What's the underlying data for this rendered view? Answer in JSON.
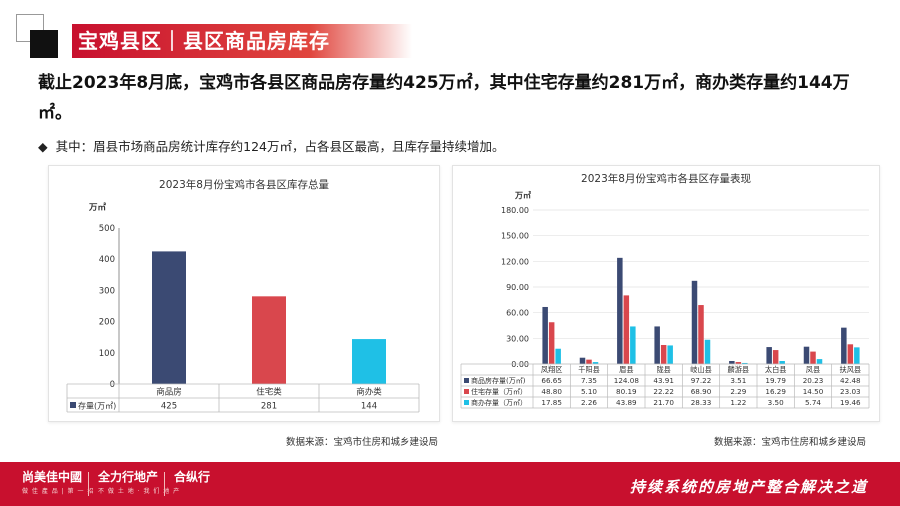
{
  "header": {
    "title": "宝鸡县区｜县区商品房库存"
  },
  "headline": "截止2023年8月底，宝鸡市各县区商品房存量约425万㎡，其中住宅存量约281万㎡，商办类存量约144万㎡。",
  "bullet": {
    "symbol": "◆",
    "text": "其中：眉县市场商品房统计库存约124万㎡，占各县区最高，且库存量持续增加。"
  },
  "colors": {
    "brand_red": "#c8102e",
    "navy": "#3b4a73",
    "red": "#d9474d",
    "cyan": "#1fc0e6"
  },
  "chart_data": [
    {
      "type": "bar",
      "title": "2023年8月份宝鸡市各县区库存总量",
      "yunit": "万㎡",
      "categories": [
        "商品房",
        "住宅类",
        "商办类"
      ],
      "series": [
        {
          "name": "存量(万㎡)",
          "values": [
            425,
            281,
            144
          ]
        }
      ],
      "value_labels": [
        "425",
        "281",
        "144"
      ],
      "ylim": [
        0,
        500
      ],
      "yticks": [
        "0",
        "100",
        "200",
        "300",
        "400",
        "500"
      ],
      "bar_colors": [
        "#3b4a73",
        "#d9474d",
        "#1fc0e6"
      ],
      "grid": false,
      "legend": "data-table"
    },
    {
      "type": "bar",
      "title": "2023年8月份宝鸡市各县区存量表现",
      "yunit": "万㎡",
      "categories": [
        "凤翔区",
        "千阳县",
        "眉县",
        "陇县",
        "岐山县",
        "麟游县",
        "太白县",
        "凤县",
        "扶风县"
      ],
      "series": [
        {
          "name": "商品房存量(万㎡)",
          "values": [
            66.65,
            7.35,
            124.08,
            43.91,
            97.22,
            3.51,
            19.79,
            20.23,
            42.48
          ],
          "labels": [
            "66.65",
            "7.35",
            "124.08",
            "43.91",
            "97.22",
            "3.51",
            "19.79",
            "20.23",
            "42.48"
          ],
          "color": "#3b4a73"
        },
        {
          "name": "住宅存量（万㎡）",
          "values": [
            48.8,
            5.1,
            80.19,
            22.22,
            68.9,
            2.29,
            16.29,
            14.5,
            23.03
          ],
          "labels": [
            "48.80",
            "5.10",
            "80.19",
            "22.22",
            "68.90",
            "2.29",
            "16.29",
            "14.50",
            "23.03"
          ],
          "color": "#d9474d"
        },
        {
          "name": "商办存量（万㎡）",
          "values": [
            17.85,
            2.26,
            43.89,
            21.7,
            28.33,
            1.22,
            3.5,
            5.74,
            19.46
          ],
          "labels": [
            "17.85",
            "2.26",
            "43.89",
            "21.70",
            "28.33",
            "1.22",
            "3.50",
            "5.74",
            "19.46"
          ],
          "color": "#1fc0e6"
        }
      ],
      "ylim": [
        0,
        180
      ],
      "yticks": [
        "0.00",
        "30.00",
        "60.00",
        "90.00",
        "120.00",
        "150.00",
        "180.00"
      ],
      "grid": true,
      "legend": "data-table"
    }
  ],
  "sources": {
    "left": "数据来源：宝鸡市住房和城乡建设局",
    "right": "数据来源：宝鸡市住房和城乡建设局"
  },
  "footer": {
    "brand1": "尚美佳中國",
    "brand1_sub": "做 佳 產 品 | 第 一 招",
    "brand2": "全力行地产",
    "brand2_sub": "不 做 土 地 · 我 们 地 产",
    "brand3": "合纵行",
    "slogan": "持续系统的房地产整合解决之道"
  }
}
